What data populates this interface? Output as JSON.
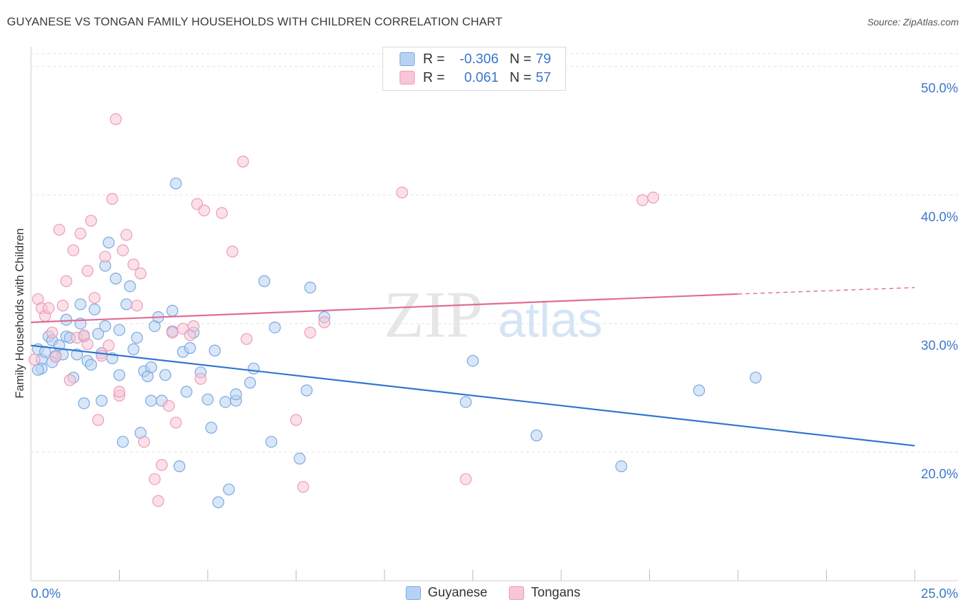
{
  "title": "GUYANESE VS TONGAN FAMILY HOUSEHOLDS WITH CHILDREN CORRELATION CHART",
  "source": "Source: ZipAtlas.com",
  "watermark": {
    "zip": "ZIP",
    "atlas": "atlas"
  },
  "colors": {
    "blue_fill": "#b8d2f3",
    "blue_stroke": "#7aa8df",
    "blue_line": "#2f74d0",
    "pink_fill": "#f8c6d6",
    "pink_stroke": "#ee9ab5",
    "pink_line": "#e06a94",
    "axis_text": "#3a78c9"
  },
  "legend": {
    "rows": [
      {
        "r_label": "R =",
        "r_value": "-0.306",
        "n_label": "N =",
        "n_value": "79",
        "color": "#b8d2f3"
      },
      {
        "r_label": "R =",
        "r_value": "0.061",
        "n_label": "N =",
        "n_value": "57",
        "color": "#f8c6d6"
      }
    ]
  },
  "bottom_legend": [
    {
      "label": "Guyanese",
      "color": "#b8d2f3"
    },
    {
      "label": "Tongans",
      "color": "#f8c6d6"
    }
  ],
  "chart_data": {
    "type": "scatter",
    "title": "GUYANESE VS TONGAN FAMILY HOUSEHOLDS WITH CHILDREN CORRELATION CHART",
    "xlabel": "",
    "ylabel": "Family Households with Children",
    "xlim": [
      0,
      25
    ],
    "ylim": [
      10,
      51
    ],
    "x_tick_labels": [
      {
        "value": 0,
        "label": "0.0%"
      },
      {
        "value": 25,
        "label": "25.0%"
      }
    ],
    "x_minor_ticks": [
      2.5,
      5,
      7.5,
      10,
      12.5,
      15,
      17.5,
      20,
      22.5,
      25
    ],
    "y_ticks": [
      {
        "value": 20,
        "label": "20.0%"
      },
      {
        "value": 30,
        "label": "30.0%"
      },
      {
        "value": 40,
        "label": "40.0%"
      },
      {
        "value": 50,
        "label": "50.0%"
      }
    ],
    "grid": true,
    "legend_position": "top-center",
    "series": [
      {
        "name": "Guyanese",
        "color": "#7aa8df",
        "trend": {
          "x": [
            0,
            25
          ],
          "y": [
            28.3,
            20.5
          ],
          "dashed_from": null
        },
        "points": [
          [
            0.2,
            28.0
          ],
          [
            0.3,
            27.2
          ],
          [
            0.3,
            26.5
          ],
          [
            0.4,
            27.8
          ],
          [
            0.5,
            29.0
          ],
          [
            0.6,
            28.7
          ],
          [
            0.7,
            27.5
          ],
          [
            0.8,
            28.3
          ],
          [
            0.9,
            27.6
          ],
          [
            1.0,
            29.0
          ],
          [
            1.0,
            30.3
          ],
          [
            1.1,
            28.9
          ],
          [
            1.2,
            25.8
          ],
          [
            1.3,
            27.6
          ],
          [
            1.4,
            31.5
          ],
          [
            1.4,
            30.0
          ],
          [
            1.5,
            23.8
          ],
          [
            1.5,
            29.0
          ],
          [
            1.6,
            27.1
          ],
          [
            1.7,
            26.8
          ],
          [
            1.8,
            31.1
          ],
          [
            1.9,
            29.2
          ],
          [
            2.0,
            27.7
          ],
          [
            2.0,
            24.0
          ],
          [
            2.1,
            34.5
          ],
          [
            2.1,
            29.8
          ],
          [
            2.2,
            36.3
          ],
          [
            2.3,
            27.3
          ],
          [
            2.4,
            33.5
          ],
          [
            2.5,
            29.5
          ],
          [
            2.5,
            26.0
          ],
          [
            2.6,
            20.8
          ],
          [
            2.7,
            31.5
          ],
          [
            2.8,
            32.9
          ],
          [
            2.9,
            28.0
          ],
          [
            3.0,
            28.9
          ],
          [
            3.1,
            21.5
          ],
          [
            3.2,
            26.3
          ],
          [
            3.3,
            25.9
          ],
          [
            3.4,
            24.0
          ],
          [
            3.4,
            26.6
          ],
          [
            3.5,
            29.8
          ],
          [
            3.6,
            30.5
          ],
          [
            3.7,
            24.0
          ],
          [
            3.8,
            26.0
          ],
          [
            4.0,
            29.4
          ],
          [
            4.0,
            31.0
          ],
          [
            4.1,
            40.9
          ],
          [
            4.2,
            18.9
          ],
          [
            4.3,
            27.8
          ],
          [
            4.4,
            24.7
          ],
          [
            4.5,
            28.1
          ],
          [
            4.6,
            29.3
          ],
          [
            4.8,
            26.2
          ],
          [
            5.0,
            24.1
          ],
          [
            5.1,
            21.9
          ],
          [
            5.2,
            27.9
          ],
          [
            5.3,
            16.1
          ],
          [
            5.5,
            23.9
          ],
          [
            5.6,
            17.1
          ],
          [
            5.8,
            24.0
          ],
          [
            5.8,
            24.5
          ],
          [
            6.2,
            25.4
          ],
          [
            6.3,
            26.5
          ],
          [
            6.6,
            33.3
          ],
          [
            6.8,
            20.8
          ],
          [
            6.9,
            29.7
          ],
          [
            7.6,
            19.5
          ],
          [
            7.8,
            24.8
          ],
          [
            7.9,
            32.8
          ],
          [
            8.3,
            30.5
          ],
          [
            12.3,
            23.9
          ],
          [
            12.5,
            27.1
          ],
          [
            14.3,
            21.3
          ],
          [
            16.7,
            18.9
          ],
          [
            18.9,
            24.8
          ],
          [
            20.5,
            25.8
          ],
          [
            0.2,
            26.4
          ],
          [
            0.6,
            27.0
          ]
        ]
      },
      {
        "name": "Tongans",
        "color": "#ee9ab5",
        "trend": {
          "x": [
            0,
            20,
            25
          ],
          "y": [
            30.1,
            32.3,
            32.8
          ],
          "dashed_from": 20
        },
        "points": [
          [
            0.1,
            27.2
          ],
          [
            0.2,
            31.9
          ],
          [
            0.3,
            31.2
          ],
          [
            0.4,
            30.6
          ],
          [
            0.5,
            31.2
          ],
          [
            0.6,
            29.3
          ],
          [
            0.7,
            27.4
          ],
          [
            0.8,
            37.3
          ],
          [
            0.9,
            31.4
          ],
          [
            1.0,
            33.3
          ],
          [
            1.1,
            25.6
          ],
          [
            1.2,
            35.7
          ],
          [
            1.3,
            28.9
          ],
          [
            1.4,
            37.0
          ],
          [
            1.5,
            29.1
          ],
          [
            1.6,
            28.4
          ],
          [
            1.6,
            34.1
          ],
          [
            1.7,
            38.0
          ],
          [
            1.8,
            32.0
          ],
          [
            1.9,
            22.5
          ],
          [
            2.0,
            27.5
          ],
          [
            2.1,
            35.2
          ],
          [
            2.2,
            28.3
          ],
          [
            2.3,
            39.7
          ],
          [
            2.4,
            45.9
          ],
          [
            2.5,
            24.4
          ],
          [
            2.5,
            24.7
          ],
          [
            2.6,
            35.7
          ],
          [
            2.7,
            36.9
          ],
          [
            2.9,
            34.6
          ],
          [
            3.0,
            31.4
          ],
          [
            3.1,
            33.9
          ],
          [
            3.2,
            20.8
          ],
          [
            3.5,
            17.9
          ],
          [
            3.6,
            16.2
          ],
          [
            3.7,
            19.0
          ],
          [
            3.9,
            23.6
          ],
          [
            4.0,
            29.3
          ],
          [
            4.1,
            22.3
          ],
          [
            4.3,
            29.6
          ],
          [
            4.5,
            29.1
          ],
          [
            4.6,
            29.8
          ],
          [
            4.7,
            39.3
          ],
          [
            4.8,
            25.7
          ],
          [
            5.4,
            38.6
          ],
          [
            5.7,
            35.6
          ],
          [
            6.0,
            42.6
          ],
          [
            6.1,
            28.8
          ],
          [
            7.5,
            22.5
          ],
          [
            7.7,
            17.3
          ],
          [
            7.9,
            29.3
          ],
          [
            8.3,
            30.1
          ],
          [
            10.5,
            40.2
          ],
          [
            12.3,
            17.9
          ],
          [
            17.3,
            39.6
          ],
          [
            17.6,
            39.8
          ],
          [
            4.9,
            38.8
          ]
        ]
      }
    ]
  }
}
